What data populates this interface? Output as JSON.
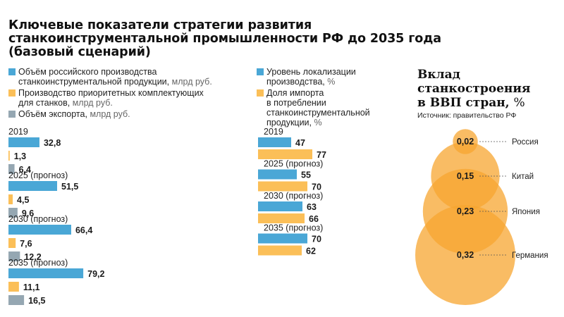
{
  "title_lines": [
    "Ключевые показатели стратегии развития",
    "станкоинструментальной промышленности РФ до 2035 года",
    "(базовый сценарий)"
  ],
  "colors": {
    "blue": "#4aa7d6",
    "yellow": "#fbbf58",
    "gray": "#95a7b2",
    "orange": "#f7a630"
  },
  "left_legend": [
    {
      "color": "blue",
      "lines": [
        "Объём российского производства",
        "станкоинструментальной продукции,"
      ],
      "unit": "млрд руб."
    },
    {
      "color": "yellow",
      "lines": [
        "Производство приоритетных комплектующих",
        "для станков,"
      ],
      "unit": "млрд руб."
    },
    {
      "color": "gray",
      "lines": [
        "Объём экспорта,"
      ],
      "unit": "млрд руб."
    }
  ],
  "right_legend": [
    {
      "color": "blue",
      "lines": [
        "Уровень локализации",
        "производства,"
      ],
      "unit": "%"
    },
    {
      "color": "yellow",
      "lines": [
        "Доля импорта",
        "в потреблении",
        "станкоинструментальной",
        "продукции,"
      ],
      "unit": "%"
    }
  ],
  "chart_data": [
    {
      "type": "bar",
      "orientation": "horizontal",
      "categories": [
        "2019",
        "2025 (прогноз)",
        "2030 (прогноз)",
        "2035 (прогноз)"
      ],
      "series": [
        {
          "name": "Объём российского производства станкоинструментальной продукции, млрд руб.",
          "color": "blue",
          "values": [
            32.8,
            51.5,
            66.4,
            79.2
          ],
          "labels": [
            "32,8",
            "51,5",
            "66,4",
            "79,2"
          ]
        },
        {
          "name": "Производство приоритетных комплектующих для станков, млрд руб.",
          "color": "yellow",
          "values": [
            1.3,
            4.5,
            7.6,
            11.1
          ],
          "labels": [
            "1,3",
            "4,5",
            "7,6",
            "11,1"
          ]
        },
        {
          "name": "Объём экспорта, млрд руб.",
          "color": "gray",
          "values": [
            6.4,
            9.6,
            12.2,
            16.5
          ],
          "labels": [
            "6,4",
            "9,6",
            "12,2",
            "16,5"
          ]
        }
      ]
    },
    {
      "type": "bar",
      "orientation": "horizontal",
      "categories": [
        "2019",
        "2025 (прогноз)",
        "2030 (прогноз)",
        "2035 (прогноз)"
      ],
      "series": [
        {
          "name": "Уровень локализации производства, %",
          "color": "blue",
          "values": [
            47,
            55,
            63,
            70
          ],
          "labels": [
            "47",
            "55",
            "63",
            "70"
          ]
        },
        {
          "name": "Доля импорта в потреблении станкоинструментальной продукции, %",
          "color": "yellow",
          "values": [
            77,
            70,
            66,
            62
          ],
          "labels": [
            "77",
            "70",
            "66",
            "62"
          ]
        }
      ]
    },
    {
      "type": "bubble",
      "title_lines": [
        "Вклад",
        "станкостроения",
        "в ВВП стран,"
      ],
      "title_unit": "%",
      "source": "Источник: правительство РФ",
      "categories": [
        "Россия",
        "Китай",
        "Япония",
        "Германия"
      ],
      "values": [
        0.02,
        0.15,
        0.23,
        0.32
      ],
      "labels": [
        "0,02",
        "0,15",
        "0,23",
        "0,32"
      ]
    }
  ]
}
